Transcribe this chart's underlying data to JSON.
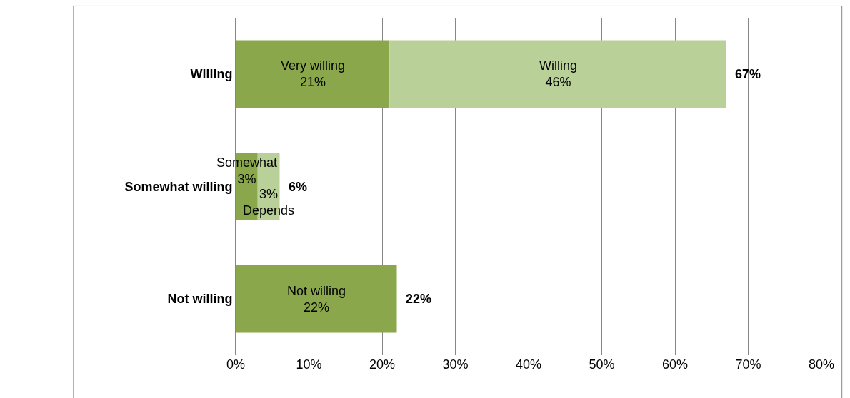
{
  "chart_data": {
    "type": "bar",
    "orientation": "horizontal",
    "stacked": true,
    "categories": [
      "Willing",
      "Somewhat willing",
      "Not willing"
    ],
    "series": [
      {
        "color": "#8aa84b",
        "values": [
          21,
          3,
          22
        ],
        "value_labels": [
          "Very willing\n21%",
          "Somewhat\n3%",
          "Not willing\n22%"
        ]
      },
      {
        "color": "#b9d098",
        "values": [
          46,
          3,
          null
        ],
        "value_labels": [
          "Willing\n46%",
          "3%\nDepends",
          null
        ]
      }
    ],
    "totals": [
      "67%",
      "6%",
      "22%"
    ],
    "xlim": [
      0,
      80
    ],
    "xticks": [
      {
        "value": 0,
        "label": "0%"
      },
      {
        "value": 10,
        "label": "10%"
      },
      {
        "value": 20,
        "label": "20%"
      },
      {
        "value": 30,
        "label": "30%"
      },
      {
        "value": 40,
        "label": "40%"
      },
      {
        "value": 50,
        "label": "50%"
      },
      {
        "value": 60,
        "label": "60%"
      },
      {
        "value": 70,
        "label": "70%"
      },
      {
        "value": 80,
        "label": "80%"
      }
    ],
    "grid": "x"
  }
}
